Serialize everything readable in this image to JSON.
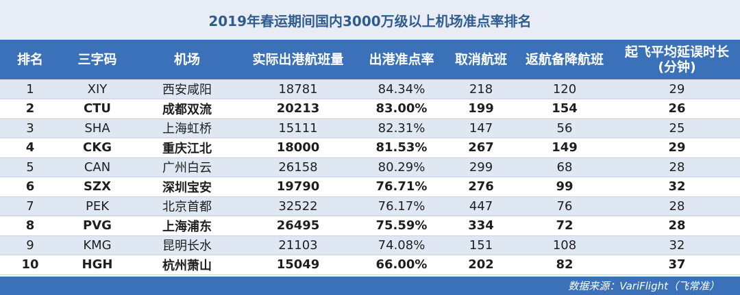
{
  "title": "2019年春运期间国内3000万级以上机场准点率排名",
  "headers": {
    "rank": "排名",
    "code": "三字码",
    "airport": "机场",
    "flights": "实际出港航班量",
    "ontime": "出港准点率",
    "cancelled": "取消航班",
    "diverted": "返航备降航班",
    "delay_line1": "起飞平均延误时长",
    "delay_line2": "(分钟)"
  },
  "rows": [
    {
      "rank": "1",
      "code": "XIY",
      "airport": "西安咸阳",
      "flights": "18781",
      "ontime": "84.34%",
      "cancelled": "218",
      "diverted": "120",
      "delay": "29"
    },
    {
      "rank": "2",
      "code": "CTU",
      "airport": "成都双流",
      "flights": "20213",
      "ontime": "83.00%",
      "cancelled": "199",
      "diverted": "154",
      "delay": "26"
    },
    {
      "rank": "3",
      "code": "SHA",
      "airport": "上海虹桥",
      "flights": "15111",
      "ontime": "82.31%",
      "cancelled": "147",
      "diverted": "56",
      "delay": "25"
    },
    {
      "rank": "4",
      "code": "CKG",
      "airport": "重庆江北",
      "flights": "18000",
      "ontime": "81.53%",
      "cancelled": "267",
      "diverted": "149",
      "delay": "29"
    },
    {
      "rank": "5",
      "code": "CAN",
      "airport": "广州白云",
      "flights": "26158",
      "ontime": "80.29%",
      "cancelled": "299",
      "diverted": "68",
      "delay": "28"
    },
    {
      "rank": "6",
      "code": "SZX",
      "airport": "深圳宝安",
      "flights": "19790",
      "ontime": "76.71%",
      "cancelled": "276",
      "diverted": "99",
      "delay": "32"
    },
    {
      "rank": "7",
      "code": "PEK",
      "airport": "北京首都",
      "flights": "32522",
      "ontime": "76.17%",
      "cancelled": "447",
      "diverted": "76",
      "delay": "28"
    },
    {
      "rank": "8",
      "code": "PVG",
      "airport": "上海浦东",
      "flights": "26495",
      "ontime": "75.59%",
      "cancelled": "334",
      "diverted": "72",
      "delay": "28"
    },
    {
      "rank": "9",
      "code": "KMG",
      "airport": "昆明长水",
      "flights": "21103",
      "ontime": "74.08%",
      "cancelled": "151",
      "diverted": "108",
      "delay": "32"
    },
    {
      "rank": "10",
      "code": "HGH",
      "airport": "杭州萧山",
      "flights": "15049",
      "ontime": "66.00%",
      "cancelled": "202",
      "diverted": "82",
      "delay": "37"
    }
  ],
  "source": "数据来源：VariFlight（飞常准）",
  "colors": {
    "header_bg": "#3a71b8",
    "title_bg": "#e8edf5",
    "title_text": "#2f5c8f",
    "stripe": "#dfe7f3"
  }
}
